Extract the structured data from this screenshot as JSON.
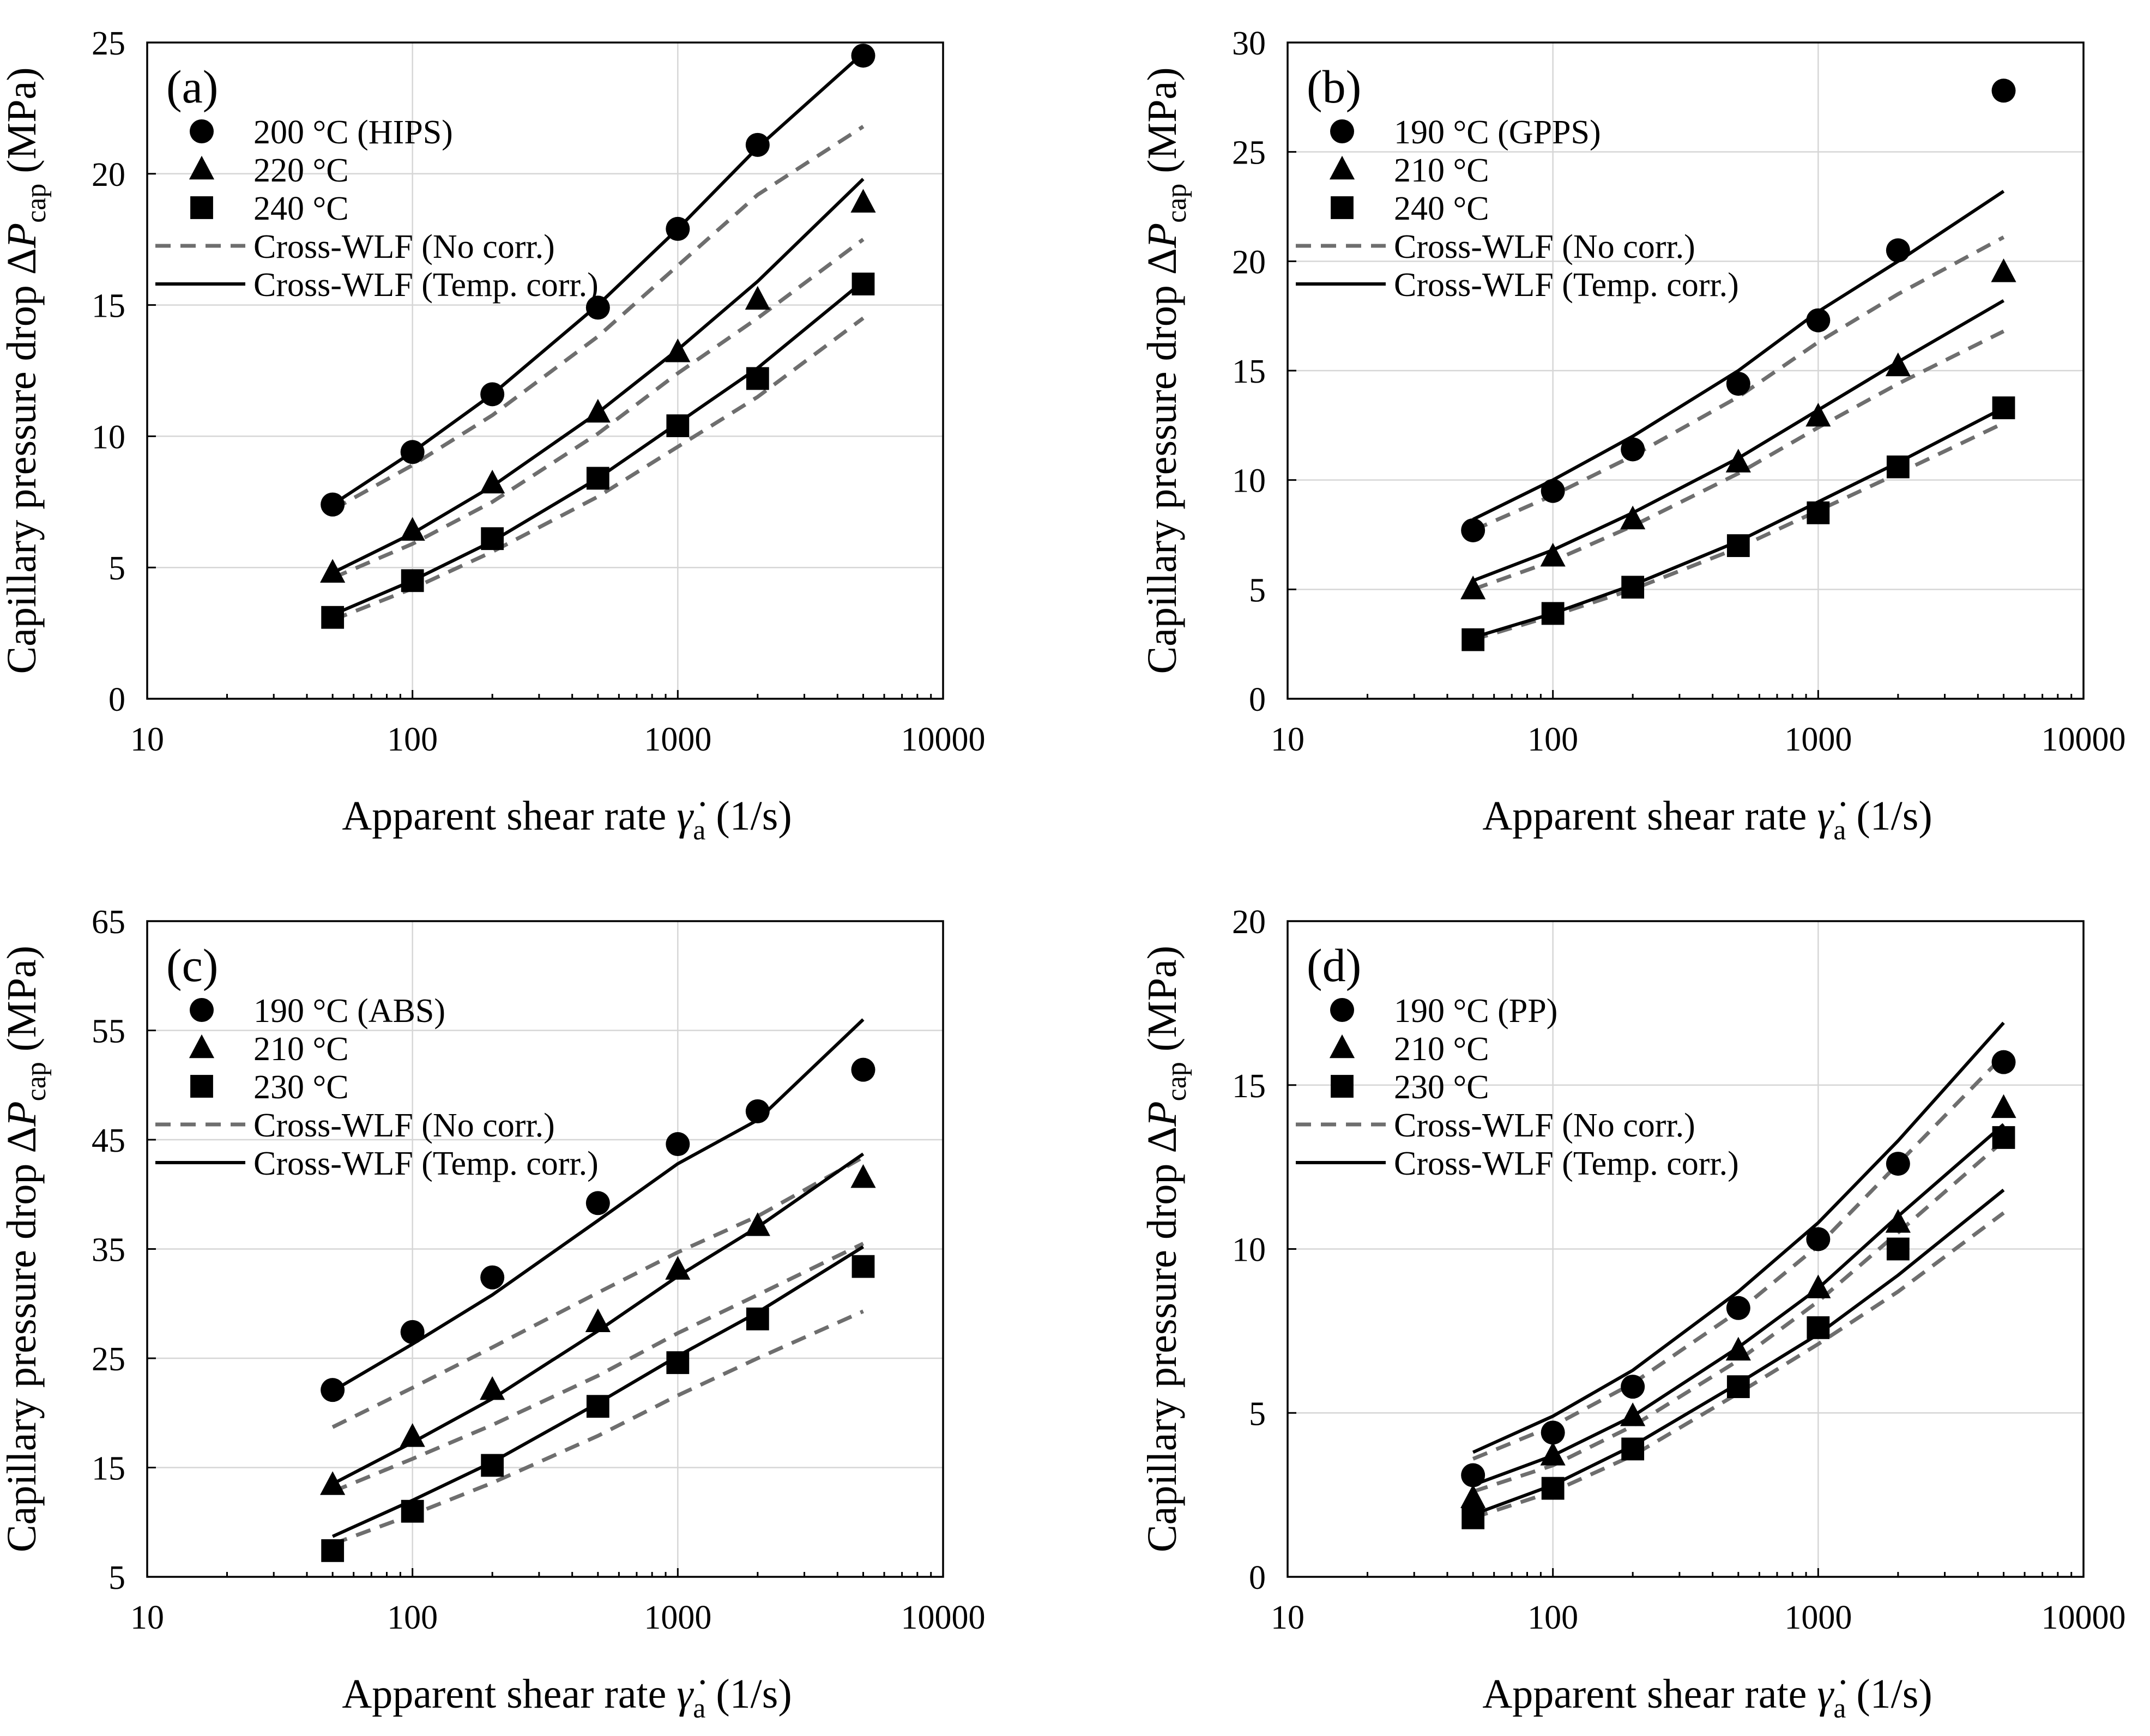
{
  "chart_data": [
    {
      "type": "scatter",
      "panel_label": "(a)",
      "xlabel": {
        "pre": "Apparent shear rate ",
        "sym": "γ̇",
        "sub": "a",
        "post": " (1/s)"
      },
      "ylabel": {
        "pre": "Capillary pressure  drop Δ",
        "sym": "P",
        "sub": "cap",
        "post": " (MPa)"
      },
      "xscale": "log",
      "xlim": [
        10,
        10000
      ],
      "xticks": [
        10,
        100,
        1000,
        10000
      ],
      "xtick_labels": [
        "10",
        "100",
        "1000",
        "10000"
      ],
      "ylim": [
        0,
        25
      ],
      "yticks": [
        0,
        5,
        10,
        15,
        20,
        25
      ],
      "ytick_labels": [
        "0",
        "5",
        "10",
        "15",
        "20",
        "25"
      ],
      "grid": true,
      "legend": "top-left",
      "legend_labels": {
        "dashed": "Cross-WLF (No corr.)",
        "solid": "Cross-WLF (Temp. corr.)"
      },
      "x": [
        50,
        100,
        200,
        500,
        1000,
        2000,
        5000
      ],
      "series": [
        {
          "name": "200 °C (HIPS)",
          "marker": "circle",
          "values": [
            7.4,
            9.4,
            11.6,
            14.9,
            17.9,
            21.1,
            24.5
          ],
          "fit_solid": [
            7.4,
            9.4,
            11.6,
            15.0,
            17.9,
            21.0,
            24.6
          ],
          "fit_dashed": [
            7.2,
            8.9,
            10.8,
            13.8,
            16.5,
            19.2,
            21.8
          ]
        },
        {
          "name": "220 °C",
          "marker": "triangle",
          "values": [
            4.8,
            6.4,
            8.2,
            10.9,
            13.2,
            15.2,
            18.9
          ],
          "fit_solid": [
            4.8,
            6.3,
            8.1,
            10.9,
            13.3,
            15.9,
            19.8
          ],
          "fit_dashed": [
            4.6,
            5.9,
            7.5,
            10.1,
            12.4,
            14.5,
            17.5
          ]
        },
        {
          "name": "240 °C",
          "marker": "square",
          "values": [
            3.1,
            4.5,
            6.1,
            8.4,
            10.4,
            12.2,
            15.8
          ],
          "fit_solid": [
            3.2,
            4.5,
            6.0,
            8.4,
            10.5,
            12.6,
            15.9
          ],
          "fit_dashed": [
            3.0,
            4.2,
            5.6,
            7.7,
            9.6,
            11.5,
            14.5
          ]
        }
      ]
    },
    {
      "type": "scatter",
      "panel_label": "(b)",
      "xlabel": {
        "pre": "Apparent shear rate ",
        "sym": "γ̇",
        "sub": "a",
        "post": " (1/s)"
      },
      "ylabel": {
        "pre": "Capillary pressure  drop Δ",
        "sym": "P",
        "sub": "cap",
        "post": " (MPa)"
      },
      "xscale": "log",
      "xlim": [
        10,
        10000
      ],
      "xticks": [
        10,
        100,
        1000,
        10000
      ],
      "xtick_labels": [
        "10",
        "100",
        "1000",
        "10000"
      ],
      "ylim": [
        0,
        30
      ],
      "yticks": [
        0,
        5,
        10,
        15,
        20,
        25,
        30
      ],
      "ytick_labels": [
        "0",
        "5",
        "10",
        "15",
        "20",
        "25",
        "30"
      ],
      "grid": true,
      "legend": "top-left",
      "legend_labels": {
        "dashed": "Cross-WLF (No corr.)",
        "solid": "Cross-WLF (Temp. corr.)"
      },
      "x": [
        50,
        100,
        200,
        500,
        1000,
        2000,
        5000
      ],
      "series": [
        {
          "name": "190 °C (GPPS)",
          "marker": "circle",
          "values": [
            7.7,
            9.5,
            11.4,
            14.4,
            17.3,
            20.5,
            27.8
          ],
          "fit_solid": [
            8.2,
            10.0,
            12.0,
            15.0,
            17.7,
            20.0,
            23.2
          ],
          "fit_dashed": [
            7.7,
            9.3,
            11.1,
            13.8,
            16.3,
            18.5,
            21.1
          ]
        },
        {
          "name": "210 °C",
          "marker": "triangle",
          "values": [
            5.0,
            6.5,
            8.2,
            10.8,
            12.9,
            15.2,
            19.5
          ],
          "fit_solid": [
            5.4,
            6.8,
            8.5,
            11.0,
            13.2,
            15.4,
            18.2
          ],
          "fit_dashed": [
            5.0,
            6.3,
            7.9,
            10.3,
            12.4,
            14.4,
            16.8
          ]
        },
        {
          "name": "240 °C",
          "marker": "square",
          "values": [
            2.7,
            3.9,
            5.1,
            7.0,
            8.5,
            10.6,
            13.3
          ],
          "fit_solid": [
            2.8,
            3.9,
            5.2,
            7.2,
            9.0,
            10.8,
            13.3
          ],
          "fit_dashed": [
            2.7,
            3.8,
            5.0,
            6.9,
            8.6,
            10.3,
            12.6
          ]
        }
      ]
    },
    {
      "type": "scatter",
      "panel_label": "(c)",
      "xlabel": {
        "pre": "Apparent shear rate ",
        "sym": "γ̇",
        "sub": "a",
        "post": " (1/s)"
      },
      "ylabel": {
        "pre": "Capillary pressure  drop Δ",
        "sym": "P",
        "sub": "cap",
        "post": " (MPa)"
      },
      "xscale": "log",
      "xlim": [
        10,
        10000
      ],
      "xticks": [
        10,
        100,
        1000,
        10000
      ],
      "xtick_labels": [
        "10",
        "100",
        "1000",
        "10000"
      ],
      "ylim": [
        5,
        65
      ],
      "yticks": [
        5,
        15,
        25,
        35,
        45,
        55,
        65
      ],
      "ytick_labels": [
        "5",
        "15",
        "25",
        "35",
        "45",
        "55",
        "65"
      ],
      "grid": true,
      "legend": "top-left",
      "legend_labels": {
        "dashed": "Cross-WLF (No corr.)",
        "solid": "Cross-WLF (Temp. corr.)"
      },
      "x": [
        50,
        100,
        200,
        500,
        1000,
        2000,
        5000
      ],
      "series": [
        {
          "name": "190 °C (ABS)",
          "marker": "circle",
          "values": [
            22.1,
            27.4,
            32.4,
            39.2,
            44.6,
            47.6,
            51.4
          ],
          "fit_solid": [
            22.0,
            26.3,
            30.8,
            37.6,
            42.8,
            46.8,
            56.0
          ],
          "fit_dashed": [
            18.7,
            22.3,
            26.0,
            31.0,
            34.7,
            38.0,
            43.4
          ]
        },
        {
          "name": "210 °C",
          "marker": "triangle",
          "values": [
            13.4,
            17.8,
            22.1,
            28.3,
            33.1,
            37.1,
            41.5
          ],
          "fit_solid": [
            13.5,
            17.3,
            21.3,
            27.5,
            32.5,
            37.0,
            43.7
          ],
          "fit_dashed": [
            12.8,
            15.8,
            18.9,
            23.4,
            27.3,
            30.8,
            35.5
          ]
        },
        {
          "name": "230 °C",
          "marker": "square",
          "values": [
            7.4,
            11.0,
            15.2,
            20.6,
            24.6,
            28.6,
            33.4
          ],
          "fit_solid": [
            8.7,
            12.0,
            15.5,
            20.9,
            25.2,
            29.2,
            35.2
          ],
          "fit_dashed": [
            8.0,
            10.7,
            13.6,
            17.9,
            21.6,
            25.0,
            29.3
          ]
        }
      ]
    },
    {
      "type": "scatter",
      "panel_label": "(d)",
      "xlabel": {
        "pre": "Apparent shear rate ",
        "sym": "γ̇",
        "sub": "a",
        "post": " (1/s)"
      },
      "ylabel": {
        "pre": "Capillary pressure  drop Δ",
        "sym": "P",
        "sub": "cap",
        "post": " (MPa)"
      },
      "xscale": "log",
      "xlim": [
        10,
        10000
      ],
      "xticks": [
        10,
        100,
        1000,
        10000
      ],
      "xtick_labels": [
        "10",
        "100",
        "1000",
        "10000"
      ],
      "ylim": [
        0,
        20
      ],
      "yticks": [
        0,
        5,
        10,
        15,
        20
      ],
      "ytick_labels": [
        "0",
        "5",
        "10",
        "15",
        "20"
      ],
      "grid": true,
      "legend": "top-left",
      "legend_labels": {
        "dashed": "Cross-WLF (No corr.)",
        "solid": "Cross-WLF (Temp. corr.)"
      },
      "x": [
        50,
        100,
        200,
        500,
        1000,
        2000,
        5000
      ],
      "series": [
        {
          "name": "190 °C (PP)",
          "marker": "circle",
          "values": [
            3.1,
            4.4,
            5.8,
            8.2,
            10.3,
            12.6,
            15.7
          ],
          "fit_solid": [
            3.8,
            4.9,
            6.3,
            8.7,
            10.8,
            13.3,
            16.9
          ],
          "fit_dashed": [
            3.6,
            4.6,
            5.9,
            8.1,
            10.1,
            12.6,
            15.9
          ]
        },
        {
          "name": "210 °C",
          "marker": "triangle",
          "values": [
            2.4,
            3.7,
            4.9,
            6.9,
            8.8,
            10.8,
            14.3
          ],
          "fit_solid": [
            2.8,
            3.7,
            4.9,
            7.0,
            8.8,
            11.0,
            13.8
          ],
          "fit_dashed": [
            2.6,
            3.4,
            4.6,
            6.6,
            8.4,
            10.5,
            13.3
          ]
        },
        {
          "name": "230 °C",
          "marker": "square",
          "values": [
            1.8,
            2.7,
            3.9,
            5.8,
            7.6,
            10.0,
            13.4
          ],
          "fit_solid": [
            1.9,
            2.8,
            4.0,
            5.9,
            7.4,
            9.2,
            11.8
          ],
          "fit_dashed": [
            1.8,
            2.6,
            3.7,
            5.6,
            7.1,
            8.7,
            11.1
          ]
        }
      ]
    }
  ]
}
